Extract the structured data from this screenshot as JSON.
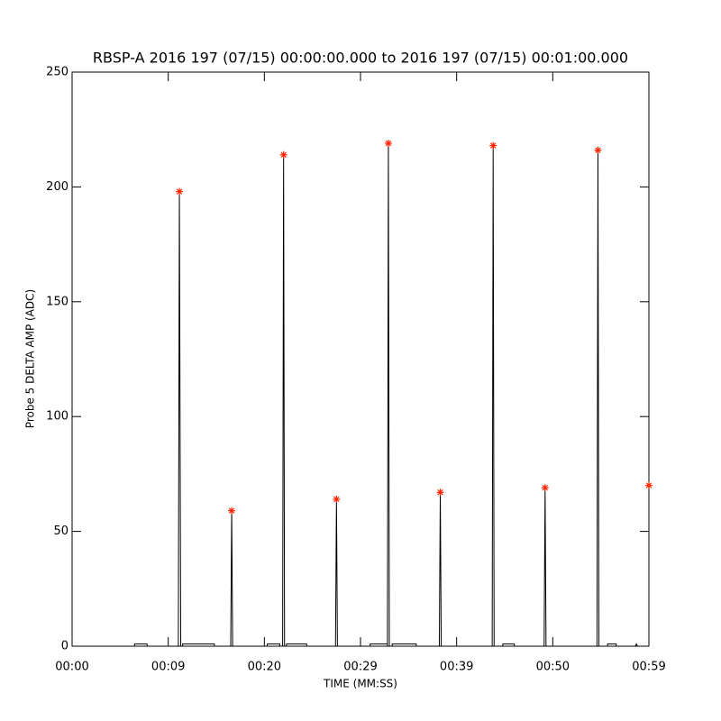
{
  "chart_data": {
    "type": "line",
    "title": "RBSP-A 2016 197 (07/15) 00:00:00.000 to 2016 197 (07/15) 00:01:00.000",
    "x_label": "TIME (MM:SS)",
    "y_label": "Probe 5 DELTA AMP (ADC)",
    "xlim": [
      0,
      60
    ],
    "ylim": [
      0,
      250
    ],
    "xticks": [
      {
        "value": 0,
        "label": "00:00"
      },
      {
        "value": 10,
        "label": "00:09"
      },
      {
        "value": 20,
        "label": "00:20"
      },
      {
        "value": 30,
        "label": "00:29"
      },
      {
        "value": 40,
        "label": "00:39"
      },
      {
        "value": 50,
        "label": "00:50"
      },
      {
        "value": 60,
        "label": "00:59"
      }
    ],
    "yticks": [
      0,
      50,
      100,
      150,
      200,
      250
    ],
    "series": [
      {
        "color": "#000000",
        "marker": "none",
        "x": [
          0,
          6.5,
          6.5,
          7.8,
          7.8,
          11.05,
          11.16,
          11.3,
          11.5,
          11.5,
          14.8,
          14.8,
          16.5,
          16.6,
          16.7,
          20.3,
          20.3,
          21.6,
          21.6,
          21.9,
          22.0,
          22.1,
          22.3,
          22.3,
          24.4,
          24.4,
          27.4,
          27.5,
          27.6,
          31.0,
          31.0,
          32.8,
          32.8,
          32.9,
          33.0,
          33.3,
          33.3,
          35.8,
          35.8,
          38.2,
          38.3,
          38.4,
          43.7,
          43.8,
          43.9,
          44.8,
          44.8,
          46.0,
          46.0,
          49.1,
          49.2,
          49.3,
          54.6,
          54.7,
          54.8,
          55.7,
          55.7,
          56.6,
          56.6,
          58.6,
          58.7,
          58.8,
          60
        ],
        "values": [
          0,
          0,
          1,
          1,
          0,
          0,
          198,
          0,
          0,
          1,
          1,
          0,
          0,
          59,
          0,
          0,
          1,
          1,
          0,
          0,
          214,
          0,
          0,
          1,
          1,
          0,
          0,
          64,
          0,
          0,
          1,
          1,
          0,
          219,
          0,
          0,
          1,
          1,
          0,
          0,
          67,
          0,
          0,
          218,
          0,
          0,
          1,
          1,
          0,
          0,
          69,
          0,
          0,
          216,
          0,
          0,
          1,
          1,
          0,
          0,
          1,
          0,
          0
        ]
      },
      {
        "color": "#ff2200",
        "marker": "star",
        "x": [
          11.16,
          16.6,
          22.0,
          27.5,
          32.9,
          38.3,
          43.8,
          49.2,
          54.7,
          60.0
        ],
        "values": [
          198,
          59,
          214,
          64,
          219,
          67,
          218,
          69,
          216,
          70
        ]
      }
    ]
  }
}
